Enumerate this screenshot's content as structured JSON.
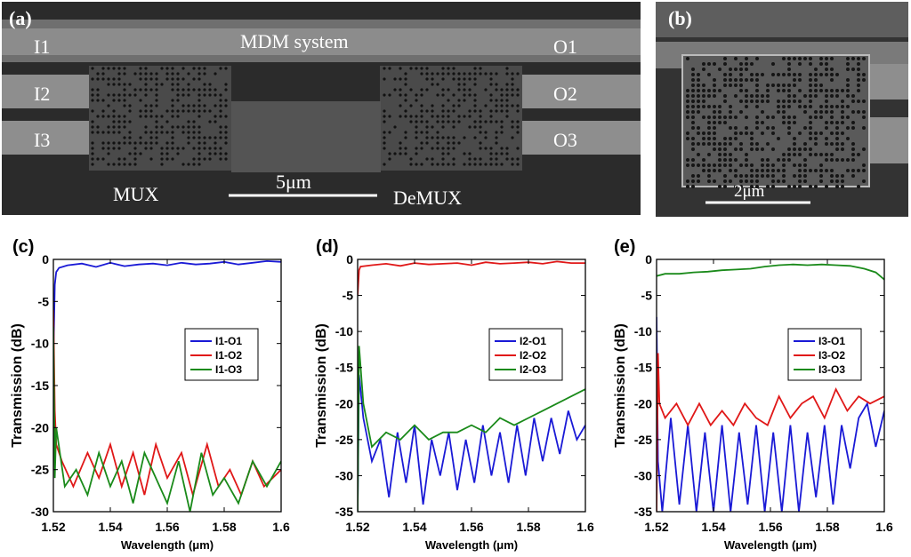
{
  "figure": {
    "panel_a": {
      "letter": "(a)",
      "title": "MDM system",
      "inputs": [
        "I1",
        "I2",
        "I3"
      ],
      "outputs": [
        "O1",
        "O2",
        "O3"
      ],
      "mux_label": "MUX",
      "demux_label": "DeMUX",
      "scale_label": "5μm"
    },
    "panel_b": {
      "letter": "(b)",
      "scale_label": "2μm"
    }
  },
  "colors": {
    "blue": "#1a1ad6",
    "red": "#e01818",
    "green": "#1a8a1a",
    "sem_dark": "#2c2c2c",
    "sem_wg": "#8a8a8a"
  },
  "chart_data": [
    {
      "type": "line",
      "panel": "(c)",
      "xlabel": "Wavelength (μm)",
      "ylabel": "Transmission (dB)",
      "xlim": [
        1.52,
        1.6
      ],
      "ylim": [
        -30,
        0
      ],
      "xticks": [
        "1.52",
        "1.54",
        "1.56",
        "1.58",
        "1.6"
      ],
      "yticks": [
        "0",
        "-5",
        "-10",
        "-15",
        "-20",
        "-25",
        "-30"
      ],
      "legend_position": "center-right",
      "series": [
        {
          "name": "I1-O1",
          "color": "#1a1ad6",
          "x": [
            1.52,
            1.5205,
            1.521,
            1.522,
            1.525,
            1.53,
            1.535,
            1.54,
            1.545,
            1.55,
            1.555,
            1.56,
            1.565,
            1.57,
            1.575,
            1.58,
            1.585,
            1.59,
            1.595,
            1.6
          ],
          "y": [
            -12,
            -3,
            -1.5,
            -1.0,
            -0.7,
            -0.5,
            -0.9,
            -0.4,
            -0.8,
            -0.6,
            -0.5,
            -0.7,
            -0.4,
            -0.6,
            -0.5,
            -0.3,
            -0.6,
            -0.4,
            -0.2,
            -0.3
          ]
        },
        {
          "name": "I1-O2",
          "color": "#e01818",
          "x": [
            1.52,
            1.5205,
            1.521,
            1.523,
            1.527,
            1.532,
            1.536,
            1.54,
            1.544,
            1.548,
            1.552,
            1.556,
            1.56,
            1.565,
            1.569,
            1.574,
            1.578,
            1.582,
            1.586,
            1.59,
            1.594,
            1.6
          ],
          "y": [
            -6,
            -18,
            -22,
            -24,
            -27,
            -23,
            -26,
            -22,
            -27,
            -23,
            -28,
            -22,
            -26,
            -23,
            -28,
            -22,
            -27,
            -25,
            -28,
            -24,
            -27,
            -25
          ]
        },
        {
          "name": "I1-O3",
          "color": "#1a8a1a",
          "x": [
            1.52,
            1.5205,
            1.521,
            1.524,
            1.528,
            1.532,
            1.536,
            1.54,
            1.544,
            1.548,
            1.552,
            1.556,
            1.56,
            1.564,
            1.568,
            1.572,
            1.576,
            1.58,
            1.585,
            1.59,
            1.595,
            1.6
          ],
          "y": [
            -8,
            -26,
            -20,
            -27,
            -25,
            -28,
            -23,
            -27,
            -24,
            -29,
            -23,
            -26,
            -29,
            -24,
            -30,
            -23,
            -28,
            -26,
            -29,
            -24,
            -27,
            -24
          ]
        }
      ]
    },
    {
      "type": "line",
      "panel": "(d)",
      "xlabel": "Wavelength (μm)",
      "ylabel": "Transmission (dB)",
      "xlim": [
        1.52,
        1.6
      ],
      "ylim": [
        -35,
        0
      ],
      "xticks": [
        "1.52",
        "1.54",
        "1.56",
        "1.58",
        "1.6"
      ],
      "yticks": [
        "0",
        "-5",
        "-10",
        "-15",
        "-20",
        "-25",
        "-30",
        "-35"
      ],
      "legend_position": "center-right",
      "series": [
        {
          "name": "I2-O1",
          "color": "#1a1ad6",
          "x": [
            1.52,
            1.5205,
            1.522,
            1.525,
            1.528,
            1.531,
            1.534,
            1.537,
            1.54,
            1.543,
            1.546,
            1.549,
            1.552,
            1.555,
            1.558,
            1.561,
            1.564,
            1.567,
            1.57,
            1.573,
            1.576,
            1.579,
            1.582,
            1.585,
            1.588,
            1.591,
            1.594,
            1.597,
            1.6
          ],
          "y": [
            -35,
            -16,
            -22,
            -28,
            -25,
            -33,
            -24,
            -31,
            -23,
            -34,
            -25,
            -30,
            -24,
            -32,
            -25,
            -31,
            -23,
            -30,
            -24,
            -31,
            -23,
            -30,
            -22,
            -28,
            -22,
            -27,
            -21,
            -25,
            -23
          ]
        },
        {
          "name": "I2-O2",
          "color": "#e01818",
          "x": [
            1.52,
            1.5205,
            1.521,
            1.525,
            1.53,
            1.535,
            1.54,
            1.545,
            1.55,
            1.555,
            1.56,
            1.565,
            1.57,
            1.575,
            1.58,
            1.585,
            1.59,
            1.595,
            1.6
          ],
          "y": [
            -5,
            -1.5,
            -1.0,
            -0.8,
            -0.6,
            -0.9,
            -0.5,
            -0.7,
            -0.6,
            -0.5,
            -0.8,
            -0.4,
            -0.6,
            -0.5,
            -0.4,
            -0.6,
            -0.3,
            -0.5,
            -0.5
          ]
        },
        {
          "name": "I2-O3",
          "color": "#1a8a1a",
          "x": [
            1.52,
            1.5205,
            1.522,
            1.525,
            1.53,
            1.535,
            1.54,
            1.545,
            1.55,
            1.555,
            1.56,
            1.565,
            1.57,
            1.575,
            1.58,
            1.585,
            1.59,
            1.595,
            1.6
          ],
          "y": [
            -35,
            -12,
            -20,
            -26,
            -24,
            -25,
            -23,
            -25,
            -24,
            -24,
            -23,
            -24,
            -22,
            -23,
            -22,
            -21,
            -20,
            -19,
            -18
          ]
        }
      ]
    },
    {
      "type": "line",
      "panel": "(e)",
      "xlabel": "Wavelength (μm)",
      "ylabel": "Transmission (dB)",
      "xlim": [
        1.52,
        1.6
      ],
      "ylim": [
        -35,
        0
      ],
      "xticks": [
        "1.52",
        "1.54",
        "1.56",
        "1.58",
        "1.6"
      ],
      "yticks": [
        "0",
        "-5",
        "-10",
        "-15",
        "-20",
        "-25",
        "-30",
        "-35"
      ],
      "legend_position": "center-right",
      "series": [
        {
          "name": "I3-O1",
          "color": "#1a1ad6",
          "x": [
            1.52,
            1.5205,
            1.522,
            1.525,
            1.528,
            1.531,
            1.534,
            1.537,
            1.54,
            1.543,
            1.546,
            1.549,
            1.552,
            1.555,
            1.558,
            1.561,
            1.564,
            1.567,
            1.57,
            1.573,
            1.576,
            1.579,
            1.582,
            1.585,
            1.588,
            1.591,
            1.594,
            1.597,
            1.6
          ],
          "y": [
            -8,
            -28,
            -35,
            -22,
            -34,
            -23,
            -35,
            -24,
            -35,
            -23,
            -35,
            -24,
            -34,
            -23,
            -35,
            -24,
            -35,
            -23,
            -35,
            -24,
            -33,
            -23,
            -34,
            -23,
            -29,
            -22,
            -20,
            -26,
            -21
          ]
        },
        {
          "name": "I3-O2",
          "color": "#e01818",
          "x": [
            1.52,
            1.5205,
            1.521,
            1.523,
            1.527,
            1.531,
            1.535,
            1.539,
            1.543,
            1.547,
            1.551,
            1.555,
            1.559,
            1.563,
            1.567,
            1.571,
            1.575,
            1.579,
            1.583,
            1.587,
            1.591,
            1.595,
            1.6
          ],
          "y": [
            -35,
            -13,
            -20,
            -22,
            -20,
            -23,
            -20,
            -23,
            -21,
            -23,
            -20,
            -22,
            -23,
            -19,
            -22,
            -20,
            -19,
            -22,
            -18,
            -21,
            -19,
            -20,
            -19
          ]
        },
        {
          "name": "I3-O3",
          "color": "#1a8a1a",
          "x": [
            1.52,
            1.523,
            1.528,
            1.533,
            1.538,
            1.543,
            1.548,
            1.553,
            1.558,
            1.563,
            1.568,
            1.573,
            1.578,
            1.583,
            1.588,
            1.593,
            1.597,
            1.6
          ],
          "y": [
            -2.3,
            -2.0,
            -2.0,
            -1.8,
            -1.7,
            -1.5,
            -1.4,
            -1.3,
            -1.0,
            -0.8,
            -0.7,
            -0.8,
            -0.7,
            -0.8,
            -0.9,
            -1.3,
            -1.8,
            -2.8
          ]
        }
      ]
    }
  ]
}
